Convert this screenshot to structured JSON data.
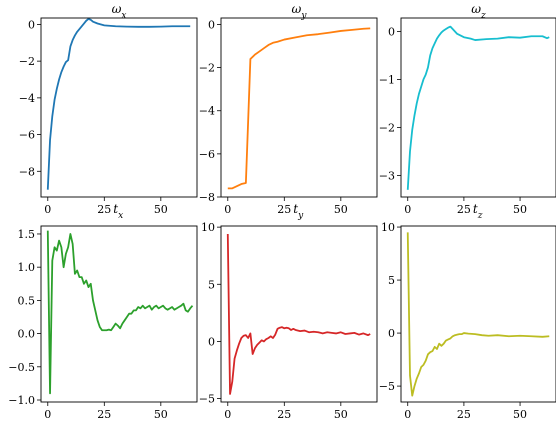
{
  "chart_data": [
    {
      "type": "line",
      "title": "ωx",
      "xlabel": "tx",
      "ylabel": "",
      "color": "#1f77b4",
      "xlim": [
        -3,
        66
      ],
      "ylim": [
        -9.4,
        0.35
      ],
      "xticks": [
        0,
        25,
        50
      ],
      "xtick_labels": [
        "0",
        "25",
        "50"
      ],
      "yticks": [
        0,
        -2,
        -4,
        -6,
        -8
      ],
      "ytick_labels": [
        "0",
        "−2",
        "−4",
        "−6",
        "−8"
      ],
      "series": [
        {
          "x": [
            0,
            1,
            2,
            3,
            4,
            5,
            6,
            7,
            8,
            9,
            10,
            11,
            12,
            13,
            14,
            15,
            16,
            17,
            18,
            19,
            20,
            22,
            25,
            30,
            35,
            40,
            45,
            50,
            55,
            60,
            63
          ],
          "y": [
            -9.0,
            -6.3,
            -5.0,
            -4.1,
            -3.5,
            -3.0,
            -2.6,
            -2.3,
            -2.05,
            -1.95,
            -1.2,
            -0.85,
            -0.6,
            -0.4,
            -0.25,
            -0.1,
            0.05,
            0.2,
            0.3,
            0.25,
            0.15,
            0.05,
            -0.05,
            -0.1,
            -0.12,
            -0.13,
            -0.13,
            -0.12,
            -0.1,
            -0.1,
            -0.1
          ]
        }
      ]
    },
    {
      "type": "line",
      "title": "ωy",
      "xlabel": "ty",
      "ylabel": "",
      "color": "#ff7f0e",
      "xlim": [
        -3,
        66
      ],
      "ylim": [
        -8.0,
        0.3
      ],
      "xticks": [
        0,
        25,
        50
      ],
      "xtick_labels": [
        "0",
        "25",
        "50"
      ],
      "yticks": [
        0,
        -2,
        -4,
        -6,
        -8
      ],
      "ytick_labels": [
        "0",
        "−2",
        "−4",
        "−6",
        "−8"
      ],
      "series": [
        {
          "x": [
            0,
            2,
            4,
            6,
            8,
            9,
            10,
            12,
            14,
            16,
            18,
            20,
            22,
            25,
            30,
            35,
            40,
            45,
            50,
            55,
            60,
            63
          ],
          "y": [
            -7.6,
            -7.6,
            -7.5,
            -7.4,
            -7.35,
            -4.5,
            -1.6,
            -1.4,
            -1.25,
            -1.1,
            -0.95,
            -0.85,
            -0.8,
            -0.7,
            -0.6,
            -0.5,
            -0.45,
            -0.38,
            -0.3,
            -0.25,
            -0.2,
            -0.18
          ]
        }
      ]
    },
    {
      "type": "line",
      "title": "ωz",
      "xlabel": "tz",
      "ylabel": "",
      "color": "#17becf",
      "xlim": [
        -3,
        66
      ],
      "ylim": [
        -3.45,
        0.28
      ],
      "xticks": [
        0,
        25,
        50
      ],
      "xtick_labels": [
        "0",
        "25",
        "50"
      ],
      "yticks": [
        0,
        -1,
        -2,
        -3
      ],
      "ytick_labels": [
        "0",
        "−1",
        "−2",
        "−3"
      ],
      "series": [
        {
          "x": [
            0,
            1,
            2,
            3,
            4,
            5,
            6,
            7,
            8,
            9,
            10,
            11,
            12,
            13,
            14,
            15,
            16,
            17,
            18,
            19,
            20,
            22,
            25,
            28,
            30,
            35,
            40,
            45,
            50,
            55,
            60,
            62,
            63
          ],
          "y": [
            -3.3,
            -2.5,
            -2.05,
            -1.75,
            -1.5,
            -1.3,
            -1.15,
            -1.0,
            -0.9,
            -0.75,
            -0.5,
            -0.35,
            -0.25,
            -0.15,
            -0.08,
            -0.02,
            0.02,
            0.05,
            0.08,
            0.1,
            0.05,
            -0.05,
            -0.12,
            -0.15,
            -0.18,
            -0.16,
            -0.15,
            -0.12,
            -0.13,
            -0.1,
            -0.1,
            -0.14,
            -0.12
          ]
        }
      ]
    },
    {
      "type": "line",
      "title": "",
      "xlabel": "",
      "ylabel": "",
      "color": "#2ca02c",
      "xlim": [
        -3,
        66
      ],
      "ylim": [
        -1.03,
        1.62
      ],
      "xticks": [
        0,
        25,
        50
      ],
      "xtick_labels": [
        "0",
        "25",
        "50"
      ],
      "yticks": [
        1.5,
        1.0,
        0.5,
        0.0,
        -0.5,
        -1.0
      ],
      "ytick_labels": [
        "1.5",
        "1.0",
        "0.5",
        "0.0",
        "−0.5",
        "−1.0"
      ],
      "series": [
        {
          "x": [
            0,
            1,
            2,
            3,
            4,
            5,
            6,
            7,
            8,
            9,
            10,
            11,
            12,
            13,
            14,
            15,
            16,
            17,
            18,
            19,
            20,
            21,
            22,
            23,
            24,
            25,
            26,
            27,
            28,
            29,
            30,
            31,
            32,
            33,
            34,
            35,
            36,
            37,
            38,
            39,
            40,
            41,
            42,
            43,
            44,
            45,
            46,
            47,
            48,
            49,
            50,
            51,
            52,
            53,
            54,
            55,
            56,
            57,
            58,
            59,
            60,
            61,
            62,
            63,
            64
          ],
          "y": [
            1.55,
            -0.9,
            1.1,
            1.3,
            1.25,
            1.4,
            1.3,
            1.0,
            1.2,
            1.3,
            1.5,
            1.35,
            0.9,
            0.95,
            0.85,
            0.85,
            0.75,
            0.8,
            0.7,
            0.75,
            0.5,
            0.35,
            0.2,
            0.1,
            0.05,
            0.05,
            0.05,
            0.06,
            0.05,
            0.1,
            0.15,
            0.12,
            0.08,
            0.15,
            0.2,
            0.25,
            0.3,
            0.3,
            0.35,
            0.35,
            0.4,
            0.38,
            0.42,
            0.38,
            0.4,
            0.42,
            0.36,
            0.4,
            0.42,
            0.38,
            0.4,
            0.42,
            0.38,
            0.36,
            0.38,
            0.4,
            0.36,
            0.38,
            0.4,
            0.42,
            0.45,
            0.35,
            0.33,
            0.38,
            0.42
          ]
        }
      ]
    },
    {
      "type": "line",
      "title": "",
      "xlabel": "",
      "ylabel": "",
      "color": "#d62728",
      "xlim": [
        -3,
        66
      ],
      "ylim": [
        -5.3,
        10.1
      ],
      "xticks": [
        0,
        25,
        50
      ],
      "xtick_labels": [
        "0",
        "25",
        "50"
      ],
      "yticks": [
        10,
        5,
        0,
        -5
      ],
      "ytick_labels": [
        "10",
        "5",
        "0",
        "−5"
      ],
      "series": [
        {
          "x": [
            0,
            1,
            2,
            3,
            4,
            5,
            6,
            7,
            8,
            9,
            10,
            11,
            12,
            13,
            14,
            15,
            16,
            17,
            18,
            19,
            20,
            21,
            22,
            23,
            24,
            25,
            26,
            27,
            28,
            29,
            30,
            32,
            34,
            36,
            38,
            40,
            42,
            44,
            46,
            48,
            50,
            52,
            54,
            56,
            58,
            60,
            62,
            63
          ],
          "y": [
            9.4,
            -4.6,
            -3.5,
            -1.5,
            -0.8,
            -0.2,
            0.3,
            0.5,
            0.55,
            0.3,
            0.7,
            -1.1,
            -0.6,
            -0.3,
            -0.1,
            0.1,
            0.0,
            0.2,
            0.3,
            0.45,
            0.3,
            0.6,
            1.1,
            1.2,
            1.25,
            1.15,
            1.2,
            1.15,
            1.0,
            1.1,
            1.0,
            0.9,
            0.95,
            0.8,
            0.85,
            0.8,
            0.7,
            0.8,
            0.75,
            0.7,
            0.8,
            0.65,
            0.7,
            0.75,
            0.6,
            0.7,
            0.55,
            0.65
          ]
        }
      ]
    },
    {
      "type": "line",
      "title": "",
      "xlabel": "",
      "ylabel": "",
      "color": "#bcbd22",
      "xlim": [
        -3,
        66
      ],
      "ylim": [
        -6.5,
        10.1
      ],
      "xticks": [
        0,
        25,
        50
      ],
      "xtick_labels": [
        "0",
        "25",
        "50"
      ],
      "yticks": [
        10,
        5,
        0,
        -5
      ],
      "ytick_labels": [
        "10",
        "5",
        "0",
        "−5"
      ],
      "series": [
        {
          "x": [
            0,
            1,
            2,
            3,
            4,
            5,
            6,
            7,
            8,
            9,
            10,
            11,
            12,
            13,
            14,
            15,
            16,
            17,
            18,
            19,
            20,
            21,
            22,
            23,
            24,
            25,
            27,
            30,
            33,
            36,
            40,
            45,
            50,
            55,
            60,
            63
          ],
          "y": [
            9.5,
            -4.0,
            -5.9,
            -5.0,
            -4.3,
            -3.8,
            -3.2,
            -3.0,
            -2.6,
            -2.0,
            -1.8,
            -1.7,
            -1.3,
            -1.5,
            -1.0,
            -1.2,
            -1.0,
            -0.7,
            -0.6,
            -0.5,
            -0.3,
            -0.2,
            -0.15,
            -0.1,
            -0.1,
            0.0,
            -0.05,
            -0.1,
            -0.2,
            -0.25,
            -0.2,
            -0.3,
            -0.25,
            -0.3,
            -0.35,
            -0.3
          ]
        }
      ]
    }
  ]
}
